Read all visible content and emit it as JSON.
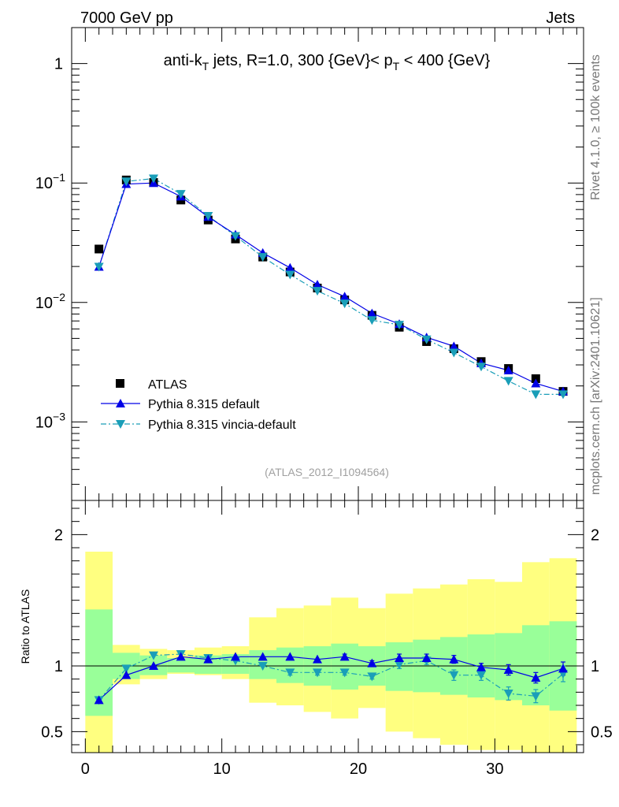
{
  "header": {
    "left_label": "7000 GeV pp",
    "right_label": "Jets"
  },
  "side_labels": {
    "rivet": "Rivet 4.1.0, ≥ 100k events",
    "mcplots": "mcplots.cern.ch [arXiv:2401.10621]"
  },
  "colors": {
    "atlas": "#000000",
    "default": "#0000e6",
    "vincia": "#1a9eb8",
    "band_outer": "#ffff80",
    "band_inner": "#99ff99"
  },
  "chart_data": [
    {
      "type": "line",
      "title_parts": {
        "pre": "anti-k",
        "sub1": "T",
        "mid": " jets, R=1.0, 300 {GeV}< p",
        "sub2": "T",
        "post": " < 400 {GeV}"
      },
      "watermark": "(ATLAS_2012_I1094564)",
      "yscale": "log",
      "ylim": [
        0.00022,
        2.0
      ],
      "xlim": [
        -1,
        36.5
      ],
      "y_ticks": [
        {
          "value": 1,
          "base": "1",
          "exp": ""
        },
        {
          "value": 0.1,
          "base": "10",
          "exp": "−1"
        },
        {
          "value": 0.01,
          "base": "10",
          "exp": "−2"
        },
        {
          "value": 0.001,
          "base": "10",
          "exp": "−3"
        }
      ],
      "legend": {
        "position": "lower-left",
        "entries": [
          "ATLAS",
          "Pythia 8.315 default",
          "Pythia 8.315 vincia-default"
        ]
      },
      "series": [
        {
          "name": "ATLAS",
          "x": [
            1,
            3,
            5,
            7,
            9,
            11,
            13,
            15,
            17,
            19,
            21,
            23,
            25,
            27,
            29,
            31,
            33,
            35
          ],
          "values": [
            0.028,
            0.106,
            0.101,
            0.072,
            0.049,
            0.034,
            0.024,
            0.018,
            0.0132,
            0.0105,
            0.0078,
            0.0062,
            0.0047,
            0.0041,
            0.0032,
            0.0028,
            0.0023,
            0.0018
          ]
        },
        {
          "name": "Pythia 8.315 default",
          "x": [
            1,
            3,
            5,
            7,
            9,
            11,
            13,
            15,
            17,
            19,
            21,
            23,
            25,
            27,
            29,
            31,
            33,
            35
          ],
          "values": [
            0.0199,
            0.098,
            0.1,
            0.077,
            0.052,
            0.037,
            0.026,
            0.0195,
            0.0141,
            0.0112,
            0.0081,
            0.0066,
            0.0051,
            0.0043,
            0.0031,
            0.0027,
            0.0021,
            0.0018
          ]
        },
        {
          "name": "Pythia 8.315 vincia-default",
          "x": [
            1,
            3,
            5,
            7,
            9,
            11,
            13,
            15,
            17,
            19,
            21,
            23,
            25,
            27,
            29,
            31,
            33,
            35
          ],
          "values": [
            0.0199,
            0.103,
            0.109,
            0.081,
            0.053,
            0.036,
            0.024,
            0.0171,
            0.0125,
            0.0098,
            0.0071,
            0.0065,
            0.0049,
            0.0038,
            0.0029,
            0.0022,
            0.0017,
            0.0017
          ]
        }
      ]
    },
    {
      "type": "line",
      "ylabel": "Ratio to ATLAS",
      "ylim": [
        0.34,
        2.26
      ],
      "xlim": [
        -1,
        36.5
      ],
      "y_ticks": [
        0.5,
        1,
        2
      ],
      "y_tick_labels": [
        "0.5",
        "1",
        "2"
      ],
      "x_ticks": [
        0,
        10,
        20,
        30
      ],
      "x_tick_labels": [
        "0",
        "10",
        "20",
        "30"
      ],
      "bands": {
        "edges": [
          0,
          2,
          4,
          6,
          8,
          10,
          12,
          14,
          16,
          18,
          20,
          22,
          24,
          26,
          28,
          30,
          32,
          34,
          36
        ],
        "outer_lo": [
          0.34,
          0.86,
          0.9,
          0.94,
          0.93,
          0.9,
          0.72,
          0.7,
          0.65,
          0.6,
          0.68,
          0.5,
          0.45,
          0.4,
          0.36,
          0.36,
          0.34,
          0.34
        ],
        "outer_hi": [
          1.87,
          1.16,
          1.13,
          1.12,
          1.14,
          1.15,
          1.37,
          1.44,
          1.46,
          1.52,
          1.44,
          1.55,
          1.59,
          1.62,
          1.66,
          1.64,
          1.79,
          1.82
        ],
        "inner_lo": [
          0.62,
          0.9,
          0.93,
          0.95,
          0.94,
          0.94,
          0.9,
          0.87,
          0.85,
          0.82,
          0.85,
          0.81,
          0.8,
          0.78,
          0.76,
          0.74,
          0.7,
          0.66
        ],
        "inner_hi": [
          1.43,
          1.1,
          1.08,
          1.06,
          1.08,
          1.09,
          1.12,
          1.14,
          1.15,
          1.17,
          1.15,
          1.18,
          1.2,
          1.22,
          1.24,
          1.25,
          1.31,
          1.34
        ]
      },
      "series": [
        {
          "name": "Pythia 8.315 default",
          "x": [
            1,
            3,
            5,
            7,
            9,
            11,
            13,
            15,
            17,
            19,
            21,
            23,
            25,
            27,
            29,
            31,
            33,
            35
          ],
          "values": [
            0.74,
            0.93,
            1.0,
            1.07,
            1.05,
            1.07,
            1.07,
            1.07,
            1.05,
            1.07,
            1.02,
            1.06,
            1.06,
            1.05,
            0.99,
            0.97,
            0.91,
            0.98
          ],
          "err": [
            0.01,
            0.01,
            0.01,
            0.01,
            0.01,
            0.01,
            0.01,
            0.01,
            0.01,
            0.02,
            0.02,
            0.03,
            0.03,
            0.03,
            0.03,
            0.04,
            0.04,
            0.05
          ]
        },
        {
          "name": "Pythia 8.315 vincia-default",
          "x": [
            1,
            3,
            5,
            7,
            9,
            11,
            13,
            15,
            17,
            19,
            21,
            23,
            25,
            27,
            29,
            31,
            33,
            35
          ],
          "values": [
            0.74,
            0.98,
            1.08,
            1.09,
            1.06,
            1.04,
            1.0,
            0.95,
            0.95,
            0.95,
            0.92,
            1.01,
            1.04,
            0.93,
            0.93,
            0.79,
            0.77,
            0.94
          ],
          "err": [
            0.01,
            0.01,
            0.01,
            0.01,
            0.01,
            0.01,
            0.01,
            0.02,
            0.02,
            0.02,
            0.02,
            0.03,
            0.03,
            0.04,
            0.04,
            0.05,
            0.05,
            0.06
          ]
        }
      ]
    }
  ]
}
